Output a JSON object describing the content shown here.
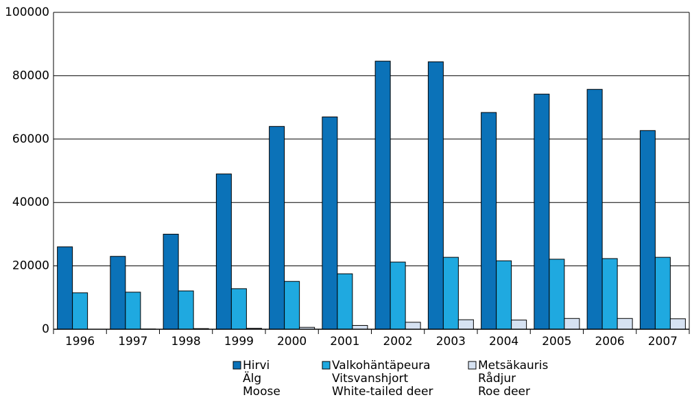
{
  "chart_data": {
    "type": "bar",
    "categories": [
      "1996",
      "1997",
      "1998",
      "1999",
      "2000",
      "2001",
      "2002",
      "2003",
      "2004",
      "2005",
      "2006",
      "2007"
    ],
    "series": [
      {
        "name": [
          "Hirvi",
          "Älg",
          "Moose"
        ],
        "color": "#0b72b8",
        "values": [
          26000,
          23000,
          30000,
          49000,
          64000,
          67000,
          84600,
          84400,
          68400,
          74200,
          75700,
          62700
        ]
      },
      {
        "name": [
          "Valkohäntäpeura",
          "Vitsvanshjort",
          "White-tailed deer"
        ],
        "color": "#1fa9e0",
        "values": [
          11500,
          11700,
          12100,
          12800,
          15100,
          17500,
          21200,
          22700,
          21600,
          22100,
          22300,
          22700
        ]
      },
      {
        "name": [
          "Metsäkauris",
          "Rådjur",
          "Roe deer"
        ],
        "color": "#d6e2f2",
        "values": [
          0,
          100,
          200,
          300,
          600,
          1200,
          2200,
          3000,
          2900,
          3400,
          3400,
          3300
        ]
      }
    ],
    "ylim": [
      0,
      100000
    ],
    "yticks": [
      0,
      20000,
      40000,
      60000,
      80000,
      100000
    ],
    "grid": true
  }
}
